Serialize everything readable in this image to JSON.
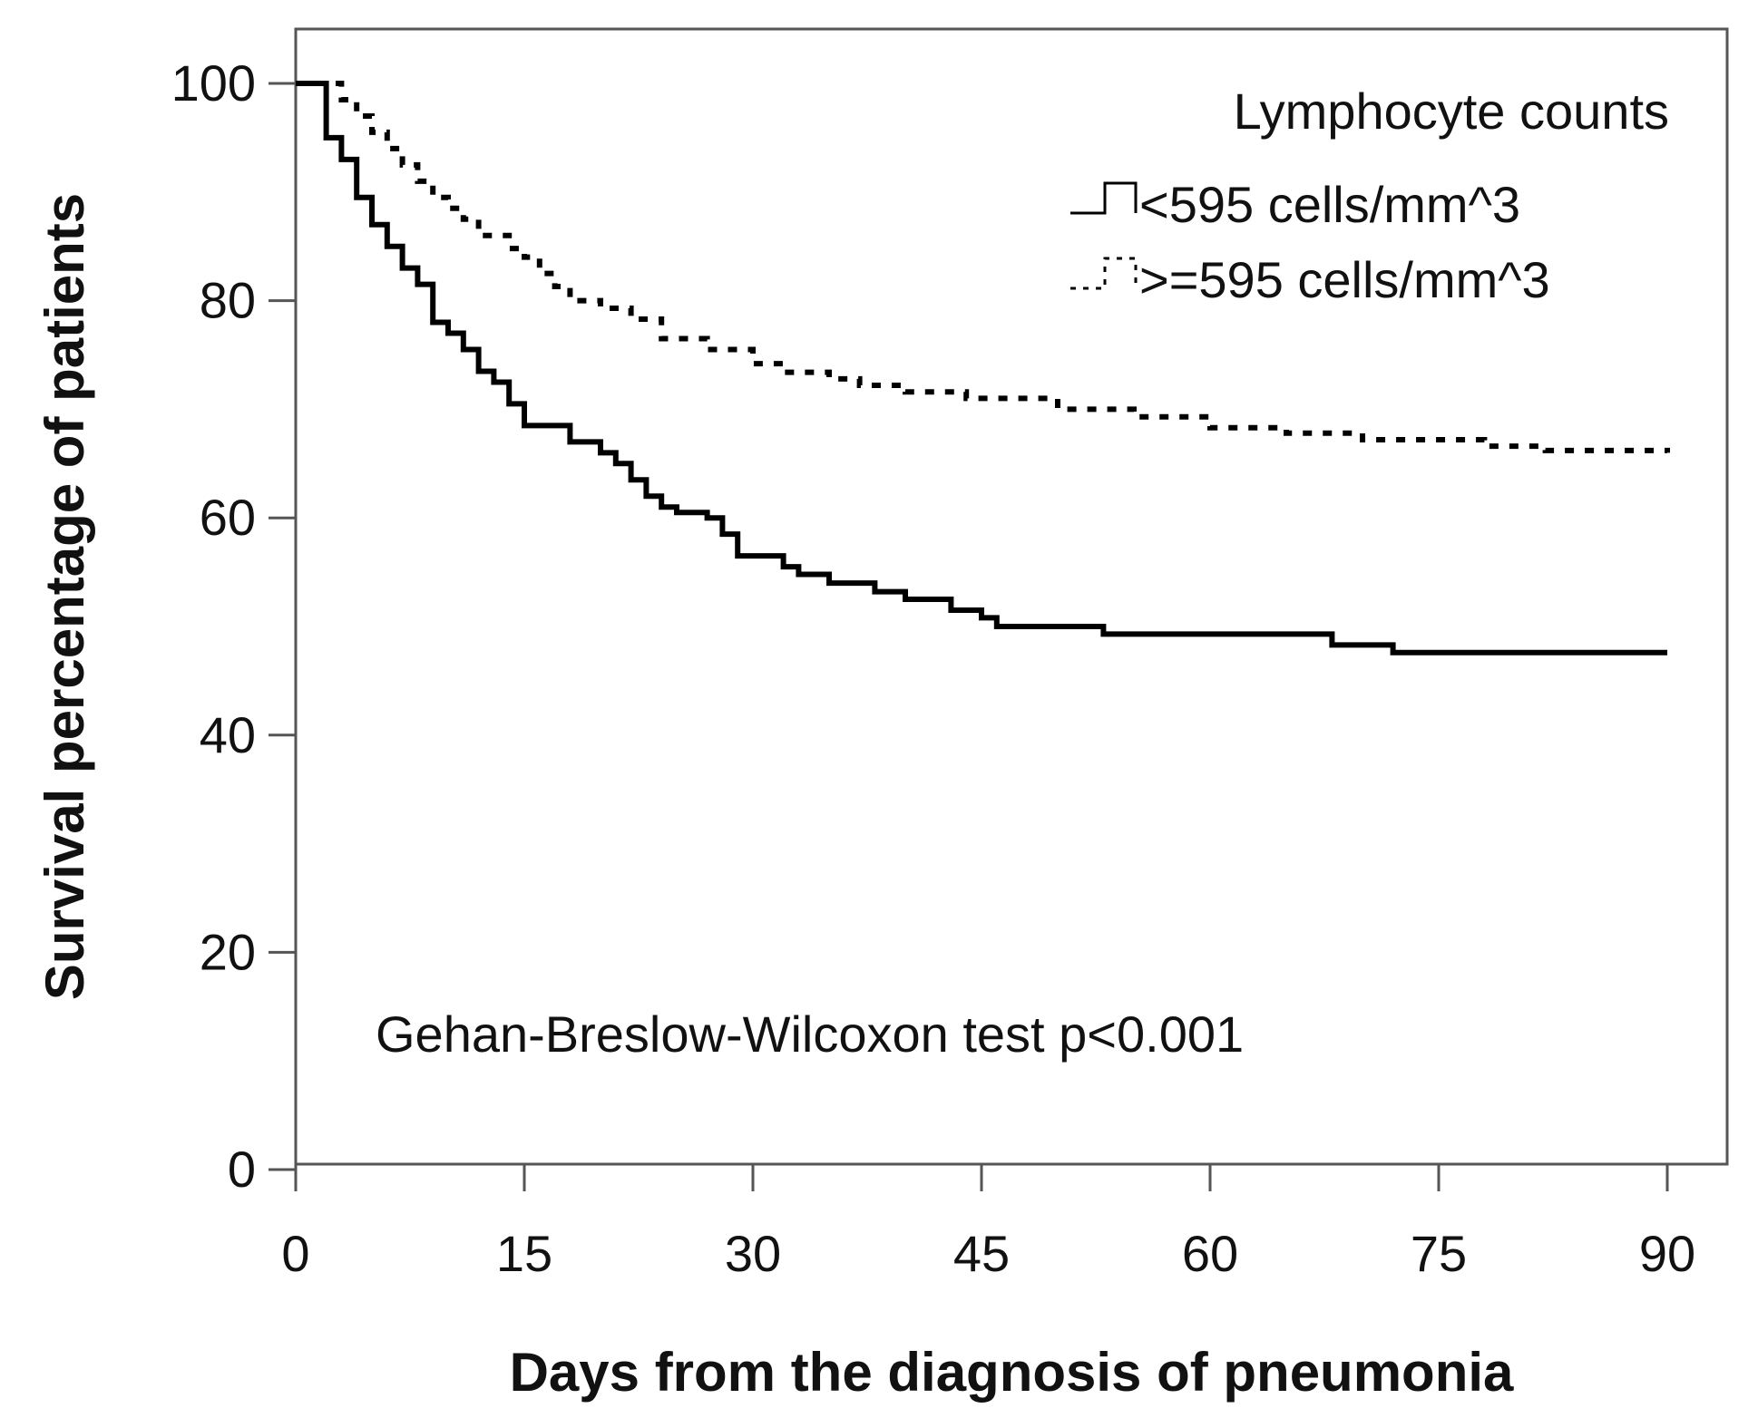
{
  "chart_data": {
    "type": "line",
    "subtype": "kaplan-meier step",
    "xlabel": "Days from the diagnosis of pneumonia",
    "ylabel": "Survival percentage of patients",
    "xlim": [
      0,
      90
    ],
    "ylim": [
      0,
      100
    ],
    "xticks": [
      0,
      15,
      30,
      45,
      60,
      75,
      90
    ],
    "yticks": [
      0,
      20,
      40,
      60,
      80,
      100
    ],
    "legend": {
      "title": "Lymphocyte counts",
      "position": "top-right"
    },
    "annotation": "Gehan-Breslow-Wilcoxon test p<0.001",
    "colors": {
      "line": "#000000",
      "axis": "#333333",
      "background": "#ffffff"
    },
    "series": [
      {
        "name": "<595 cells/mm^3",
        "style": "solid",
        "points": [
          [
            0,
            100
          ],
          [
            2,
            95
          ],
          [
            3,
            93
          ],
          [
            4,
            89.5
          ],
          [
            5,
            87
          ],
          [
            6,
            85
          ],
          [
            7,
            83
          ],
          [
            8,
            81.5
          ],
          [
            9,
            78
          ],
          [
            10,
            77
          ],
          [
            11,
            75.5
          ],
          [
            12,
            73.5
          ],
          [
            13,
            72.5
          ],
          [
            14,
            70.5
          ],
          [
            15,
            68.5
          ],
          [
            18,
            67
          ],
          [
            20,
            66
          ],
          [
            21,
            65
          ],
          [
            22,
            63.5
          ],
          [
            23,
            62
          ],
          [
            24,
            61
          ],
          [
            25,
            60.5
          ],
          [
            27,
            60
          ],
          [
            28,
            58.5
          ],
          [
            29,
            56.5
          ],
          [
            32,
            55.5
          ],
          [
            33,
            54.8
          ],
          [
            35,
            54
          ],
          [
            38,
            53.2
          ],
          [
            40,
            52.5
          ],
          [
            43,
            51.5
          ],
          [
            45,
            50.8
          ],
          [
            46,
            50
          ],
          [
            53,
            49.3
          ],
          [
            68,
            48.3
          ],
          [
            72,
            47.6
          ],
          [
            90,
            47.6
          ]
        ]
      },
      {
        "name": ">=595 cells/mm^3",
        "style": "dotted",
        "points": [
          [
            0,
            100
          ],
          [
            2,
            100
          ],
          [
            3,
            98.5
          ],
          [
            4,
            97
          ],
          [
            5,
            95.5
          ],
          [
            6,
            94
          ],
          [
            7,
            92.5
          ],
          [
            8,
            91
          ],
          [
            9,
            89.5
          ],
          [
            10,
            88.5
          ],
          [
            11,
            87.5
          ],
          [
            12,
            86
          ],
          [
            14,
            84.8
          ],
          [
            15,
            84
          ],
          [
            16,
            82.5
          ],
          [
            17,
            81.3
          ],
          [
            18,
            80
          ],
          [
            20,
            79.3
          ],
          [
            22,
            78.3
          ],
          [
            24,
            76.5
          ],
          [
            27,
            75.5
          ],
          [
            30,
            74.2
          ],
          [
            32,
            73.4
          ],
          [
            35,
            72.8
          ],
          [
            37,
            72.2
          ],
          [
            40,
            71.6
          ],
          [
            44,
            71
          ],
          [
            50,
            70
          ],
          [
            55,
            69.3
          ],
          [
            60,
            68.3
          ],
          [
            65,
            67.8
          ],
          [
            70,
            67.2
          ],
          [
            78,
            66.6
          ],
          [
            82,
            66.2
          ],
          [
            90,
            66
          ]
        ]
      }
    ]
  }
}
